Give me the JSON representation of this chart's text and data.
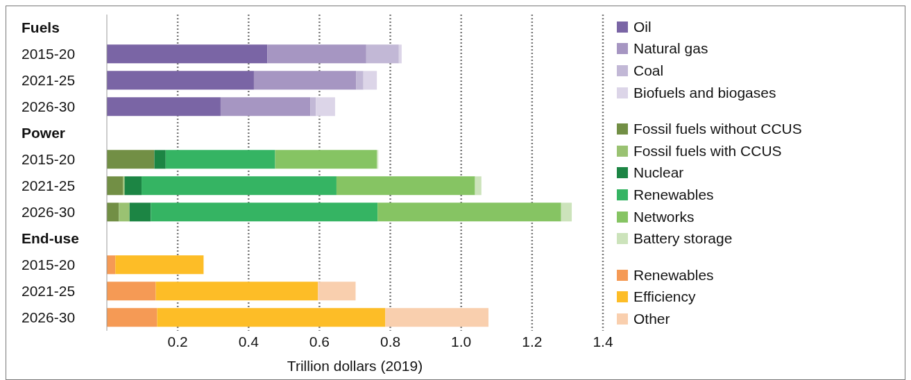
{
  "chart_data": {
    "type": "bar",
    "orientation": "horizontal",
    "stacked": true,
    "categories": [
      "Fuels",
      "2015-20",
      "2021-25",
      "2026-30",
      "Power",
      "2015-20",
      "2021-25",
      "2026-30",
      "End-use",
      "2015-20",
      "2021-25",
      "2026-30"
    ],
    "series": [
      {
        "name": "Oil",
        "color": "#7a65a5",
        "values": [
          null,
          0.453,
          0.415,
          0.321,
          null,
          null,
          null,
          null,
          null,
          null,
          null,
          null
        ]
      },
      {
        "name": "Natural gas",
        "color": "#a696c2",
        "values": [
          null,
          0.279,
          0.289,
          0.253,
          null,
          null,
          null,
          null,
          null,
          null,
          null,
          null
        ]
      },
      {
        "name": "Coal",
        "color": "#c2b8d6",
        "values": [
          null,
          0.092,
          0.02,
          0.016,
          null,
          null,
          null,
          null,
          null,
          null,
          null,
          null
        ]
      },
      {
        "name": "Biofuels and biogases",
        "color": "#dcd5e8",
        "values": [
          null,
          0.008,
          0.038,
          0.054,
          null,
          null,
          null,
          null,
          null,
          null,
          null,
          null
        ]
      },
      {
        "name": "Fossil fuels without CCUS",
        "color": "#728f45",
        "values": [
          null,
          null,
          null,
          null,
          null,
          0.134,
          0.046,
          0.034,
          null,
          null,
          null,
          null
        ]
      },
      {
        "name": "Fossil fuels with CCUS",
        "color": "#9ac272",
        "values": [
          null,
          null,
          null,
          null,
          null,
          null,
          0.004,
          0.03,
          null,
          null,
          null,
          null
        ]
      },
      {
        "name": "Nuclear",
        "color": "#1c8544",
        "values": [
          null,
          null,
          null,
          null,
          null,
          0.032,
          0.048,
          0.06,
          null,
          null,
          null,
          null
        ]
      },
      {
        "name": "Renewables",
        "color": "#35b463",
        "values": [
          null,
          null,
          null,
          null,
          null,
          0.309,
          0.55,
          0.64,
          null,
          null,
          null,
          null
        ]
      },
      {
        "name": "Networks",
        "color": "#86c463",
        "values": [
          null,
          null,
          null,
          null,
          null,
          0.287,
          0.391,
          0.518,
          null,
          null,
          null,
          null
        ]
      },
      {
        "name": "Battery storage",
        "color": "#cce3bb",
        "values": [
          null,
          null,
          null,
          null,
          null,
          0.004,
          0.018,
          0.03,
          null,
          null,
          null,
          null
        ]
      },
      {
        "name": "Renewables",
        "color": "#f59a55",
        "values": [
          null,
          null,
          null,
          null,
          null,
          null,
          null,
          null,
          null,
          0.024,
          0.138,
          0.142
        ]
      },
      {
        "name": "Efficiency",
        "color": "#fdbd27",
        "values": [
          null,
          null,
          null,
          null,
          null,
          null,
          null,
          null,
          null,
          0.249,
          0.458,
          0.644
        ]
      },
      {
        "name": "Other",
        "color": "#f9cfae",
        "values": [
          null,
          null,
          null,
          null,
          null,
          null,
          null,
          null,
          null,
          null,
          0.106,
          0.291
        ]
      }
    ],
    "xlim": [
      0,
      1.4
    ],
    "xticks": [
      0.2,
      0.4,
      0.6,
      0.8,
      {
        "value": 1,
        "label": "1.0"
      },
      1.2,
      1.4
    ],
    "xlabel": "Trillion dollars (2019)",
    "grid": "x",
    "legend": "right"
  }
}
